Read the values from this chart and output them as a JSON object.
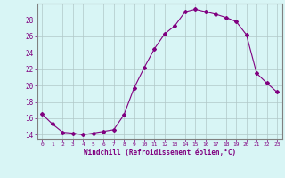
{
  "x": [
    0,
    1,
    2,
    3,
    4,
    5,
    6,
    7,
    8,
    9,
    10,
    11,
    12,
    13,
    14,
    15,
    16,
    17,
    18,
    19,
    20,
    21,
    22,
    23
  ],
  "y": [
    16.5,
    15.3,
    14.3,
    14.2,
    14.0,
    14.2,
    14.4,
    14.6,
    16.4,
    19.7,
    22.2,
    24.5,
    26.3,
    27.3,
    29.0,
    29.3,
    29.0,
    28.7,
    28.3,
    27.8,
    26.2,
    21.5,
    20.3,
    19.2
  ],
  "line_color": "#800080",
  "marker": "D",
  "marker_size": 2.0,
  "background_color": "#d8f5f5",
  "grid_color": "#b0c8c8",
  "xlabel": "Windchill (Refroidissement éolien,°C)",
  "xlabel_color": "#800080",
  "tick_color": "#800080",
  "ylim": [
    13.5,
    30.0
  ],
  "xlim": [
    -0.5,
    23.5
  ],
  "yticks": [
    14,
    16,
    18,
    20,
    22,
    24,
    26,
    28
  ],
  "xticks": [
    0,
    1,
    2,
    3,
    4,
    5,
    6,
    7,
    8,
    9,
    10,
    11,
    12,
    13,
    14,
    15,
    16,
    17,
    18,
    19,
    20,
    21,
    22,
    23
  ],
  "figsize": [
    3.2,
    2.0
  ],
  "dpi": 100
}
